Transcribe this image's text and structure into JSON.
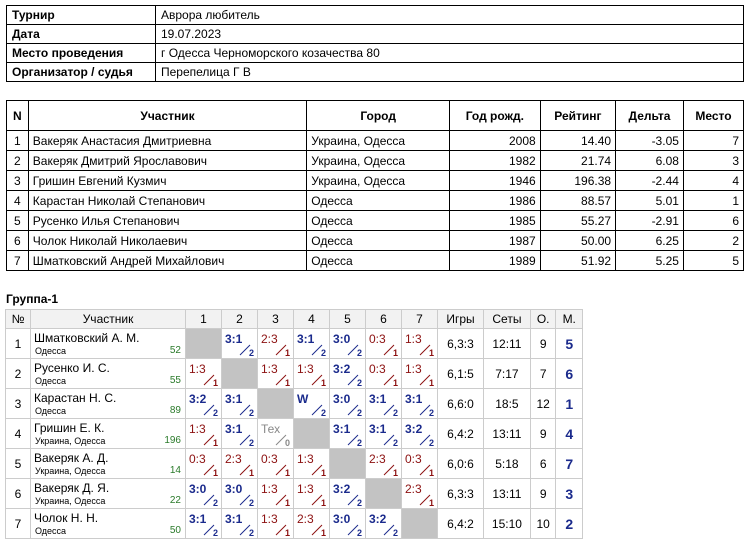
{
  "info": {
    "rows": [
      [
        "Турнир",
        "Аврора любитель"
      ],
      [
        "Дата",
        "19.07.2023"
      ],
      [
        "Место проведения",
        "г Одесса Черноморского козачества 80"
      ],
      [
        "Организатор / судья",
        "Перепелица Г В"
      ]
    ]
  },
  "players": {
    "header": [
      "N",
      "Участник",
      "Город",
      "Год рожд.",
      "Рейтинг",
      "Дельта",
      "Место"
    ],
    "rows": [
      [
        "1",
        "Вакеряк Анастасия Дмитриевна",
        "Украина, Одесса",
        "2008",
        "14.40",
        "-3.05",
        "7"
      ],
      [
        "2",
        "Вакеряк Дмитрий Ярославович",
        "Украина, Одесса",
        "1982",
        "21.74",
        "6.08",
        "3"
      ],
      [
        "3",
        "Гришин Евгений Кузмич",
        "Украина, Одесса",
        "1946",
        "196.38",
        "-2.44",
        "4"
      ],
      [
        "4",
        "Карастан Николай Степанович",
        "Одесса",
        "1986",
        "88.57",
        "5.01",
        "1"
      ],
      [
        "5",
        "Русенко Илья Степанович",
        "Одесса",
        "1985",
        "55.27",
        "-2.91",
        "6"
      ],
      [
        "6",
        "Чолок Николай Николаевич",
        "Одесса",
        "1987",
        "50.00",
        "6.25",
        "2"
      ],
      [
        "7",
        "Шматковский Андрей Михайлович",
        "Одесса",
        "1989",
        "51.92",
        "5.25",
        "5"
      ]
    ]
  },
  "group": {
    "title": "Группа-1",
    "header": [
      "№",
      "Участник",
      "1",
      "2",
      "3",
      "4",
      "5",
      "6",
      "7",
      "Игры",
      "Сеты",
      "О.",
      "М."
    ],
    "rows": [
      {
        "n": "1",
        "name": "Шматковский А. М.",
        "city": "Одесса",
        "rating": "52",
        "results": [
          null,
          {
            "score": "3:1",
            "points": "2"
          },
          {
            "score": "2:3",
            "points": "1"
          },
          {
            "score": "3:1",
            "points": "2"
          },
          {
            "score": "3:0",
            "points": "2"
          },
          {
            "score": "0:3",
            "points": "1"
          },
          {
            "score": "1:3",
            "points": "1"
          }
        ],
        "games": "6,3:3",
        "sets": "12:11",
        "points": "9",
        "place": "5"
      },
      {
        "n": "2",
        "name": "Русенко И. С.",
        "city": "Одесса",
        "rating": "55",
        "results": [
          {
            "score": "1:3",
            "points": "1"
          },
          null,
          {
            "score": "1:3",
            "points": "1"
          },
          {
            "score": "1:3",
            "points": "1"
          },
          {
            "score": "3:2",
            "points": "2"
          },
          {
            "score": "0:3",
            "points": "1"
          },
          {
            "score": "1:3",
            "points": "1"
          }
        ],
        "games": "6,1:5",
        "sets": "7:17",
        "points": "7",
        "place": "6"
      },
      {
        "n": "3",
        "name": "Карастан Н. С.",
        "city": "Одесса",
        "rating": "89",
        "results": [
          {
            "score": "3:2",
            "points": "2"
          },
          {
            "score": "3:1",
            "points": "2"
          },
          null,
          {
            "score": "W",
            "points": "2"
          },
          {
            "score": "3:0",
            "points": "2"
          },
          {
            "score": "3:1",
            "points": "2"
          },
          {
            "score": "3:1",
            "points": "2"
          }
        ],
        "games": "6,6:0",
        "sets": "18:5",
        "points": "12",
        "place": "1"
      },
      {
        "n": "4",
        "name": "Гришин Е. К.",
        "city": "Украина, Одесса",
        "rating": "196",
        "results": [
          {
            "score": "1:3",
            "points": "1"
          },
          {
            "score": "3:1",
            "points": "2"
          },
          {
            "score": "Тех",
            "points": "0"
          },
          null,
          {
            "score": "3:1",
            "points": "2"
          },
          {
            "score": "3:1",
            "points": "2"
          },
          {
            "score": "3:2",
            "points": "2"
          }
        ],
        "games": "6,4:2",
        "sets": "13:11",
        "points": "9",
        "place": "4"
      },
      {
        "n": "5",
        "name": "Вакеряк А. Д.",
        "city": "Украина, Одесса",
        "rating": "14",
        "results": [
          {
            "score": "0:3",
            "points": "1"
          },
          {
            "score": "2:3",
            "points": "1"
          },
          {
            "score": "0:3",
            "points": "1"
          },
          {
            "score": "1:3",
            "points": "1"
          },
          null,
          {
            "score": "2:3",
            "points": "1"
          },
          {
            "score": "0:3",
            "points": "1"
          }
        ],
        "games": "6,0:6",
        "sets": "5:18",
        "points": "6",
        "place": "7"
      },
      {
        "n": "6",
        "name": "Вакеряк Д. Я.",
        "city": "Украина, Одесса",
        "rating": "22",
        "results": [
          {
            "score": "3:0",
            "points": "2"
          },
          {
            "score": "3:0",
            "points": "2"
          },
          {
            "score": "1:3",
            "points": "1"
          },
          {
            "score": "1:3",
            "points": "1"
          },
          {
            "score": "3:2",
            "points": "2"
          },
          null,
          {
            "score": "2:3",
            "points": "1"
          }
        ],
        "games": "6,3:3",
        "sets": "13:11",
        "points": "9",
        "place": "3"
      },
      {
        "n": "7",
        "name": "Чолок Н. Н.",
        "city": "Одесса",
        "rating": "50",
        "results": [
          {
            "score": "3:1",
            "points": "2"
          },
          {
            "score": "3:1",
            "points": "2"
          },
          {
            "score": "1:3",
            "points": "1"
          },
          {
            "score": "2:3",
            "points": "1"
          },
          {
            "score": "3:0",
            "points": "2"
          },
          {
            "score": "3:2",
            "points": "2"
          },
          null
        ],
        "games": "6,4:2",
        "sets": "15:10",
        "points": "10",
        "place": "2"
      }
    ]
  }
}
